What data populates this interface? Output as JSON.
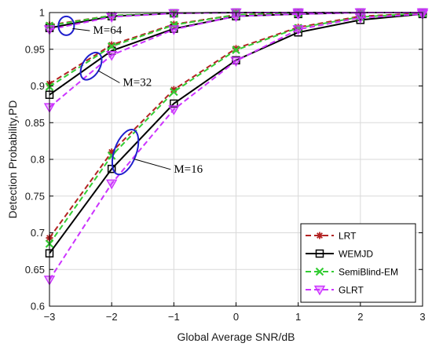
{
  "chart_data": {
    "type": "line",
    "xlabel": "Global Average SNR/dB",
    "ylabel": "Detection Probability,PD",
    "xlim": [
      -3,
      3
    ],
    "ylim": [
      0.6,
      1.0
    ],
    "xticks": [
      -3,
      -2,
      -1,
      0,
      1,
      2,
      3
    ],
    "yticks": [
      0.6,
      0.65,
      0.7,
      0.75,
      0.8,
      0.85,
      0.9,
      0.95,
      1.0
    ],
    "xtick_labels": [
      "−3",
      "−2",
      "−1",
      "0",
      "1",
      "2",
      "3"
    ],
    "ytick_labels": [
      "0.6",
      "0.65",
      "0.7",
      "0.75",
      "0.8",
      "0.85",
      "0.9",
      "0.95",
      "1"
    ],
    "grid": true,
    "legend_position": "bottom-right",
    "x": [
      -3,
      -2,
      -1,
      0,
      1,
      2,
      3
    ],
    "series": [
      {
        "name": "LRT",
        "color": "#b22222",
        "dash": "dashed",
        "marker": "asterisk",
        "groups": [
          {
            "values": [
              0.693,
              0.81,
              0.895,
              0.951,
              0.98,
              0.995,
              0.999
            ]
          },
          {
            "values": [
              0.903,
              0.956,
              0.984,
              0.997,
              0.999,
              1.0,
              1.0
            ]
          },
          {
            "values": [
              0.983,
              0.996,
              0.999,
              1.0,
              1.0,
              1.0,
              1.0
            ]
          }
        ]
      },
      {
        "name": "WEMJD",
        "color": "#000000",
        "dash": "solid",
        "marker": "square",
        "groups": [
          {
            "values": [
              0.672,
              0.787,
              0.876,
              0.935,
              0.973,
              0.99,
              0.998
            ]
          },
          {
            "values": [
              0.888,
              0.948,
              0.978,
              0.995,
              0.998,
              1.0,
              1.0
            ]
          },
          {
            "values": [
              0.979,
              0.995,
              0.999,
              1.0,
              1.0,
              1.0,
              1.0
            ]
          }
        ]
      },
      {
        "name": "SemiBlind-EM",
        "color": "#33cc33",
        "dash": "dashed",
        "marker": "cross",
        "groups": [
          {
            "values": [
              0.685,
              0.805,
              0.892,
              0.949,
              0.979,
              0.994,
              0.999
            ]
          },
          {
            "values": [
              0.899,
              0.954,
              0.983,
              0.997,
              0.999,
              1.0,
              1.0
            ]
          },
          {
            "values": [
              0.982,
              0.996,
              0.999,
              1.0,
              1.0,
              1.0,
              1.0
            ]
          }
        ]
      },
      {
        "name": "GLRT",
        "color": "#cc33ff",
        "dash": "dashed",
        "marker": "triangle-down",
        "groups": [
          {
            "values": [
              0.636,
              0.767,
              0.868,
              0.934,
              0.977,
              0.993,
              0.998
            ]
          },
          {
            "values": [
              0.871,
              0.942,
              0.977,
              0.995,
              0.998,
              1.0,
              1.0
            ]
          },
          {
            "values": [
              0.977,
              0.994,
              0.999,
              1.0,
              1.0,
              1.0,
              1.0
            ]
          }
        ]
      }
    ],
    "annotations": [
      {
        "text": "M=64",
        "ellipse_center": [
          -2.73,
          0.982
        ],
        "text_pos": [
          -2.3,
          0.971
        ]
      },
      {
        "text": "M=32",
        "ellipse_center": [
          -2.33,
          0.927
        ],
        "text_pos": [
          -1.82,
          0.9
        ]
      },
      {
        "text": "M=16",
        "ellipse_center": [
          -1.78,
          0.81
        ],
        "text_pos": [
          -1.0,
          0.782
        ]
      }
    ]
  }
}
